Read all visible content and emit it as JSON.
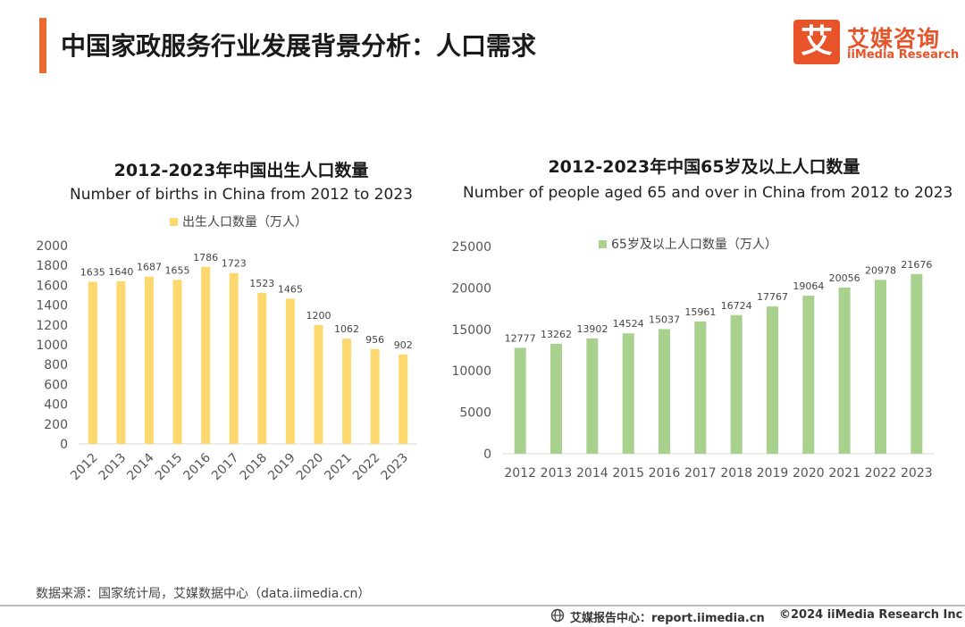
{
  "header": {
    "title": "中国家政服务行业发展背景分析：人口需求"
  },
  "logo": {
    "box_char": "艾",
    "cn": "艾媒咨询",
    "en": "iiMedia Research",
    "brand_color": "#e8542a"
  },
  "left_chart": {
    "title": "2012-2023年中国出生人口数量",
    "subtitle": "Number of births in China from 2012 to 2023",
    "legend": "出生人口数量（万人）"
  },
  "right_chart": {
    "title": "2012-2023年中国65岁及以上人口数量",
    "subtitle": "Number of people aged 65 and over in China from 2012 to 2023",
    "legend": "65岁及以上人口数量（万人）"
  },
  "chart_data": [
    {
      "type": "bar",
      "title": "2012-2023年中国出生人口数量",
      "subtitle": "Number of births in China from 2012 to 2023",
      "categories": [
        "2012",
        "2013",
        "2014",
        "2015",
        "2016",
        "2017",
        "2018",
        "2019",
        "2020",
        "2021",
        "2022",
        "2023"
      ],
      "series": [
        {
          "name": "出生人口数量（万人）",
          "values": [
            1635,
            1640,
            1687,
            1655,
            1786,
            1723,
            1523,
            1465,
            1200,
            1062,
            956,
            902
          ]
        }
      ],
      "ylim": [
        0,
        2000
      ],
      "yticks": [
        0,
        200,
        400,
        600,
        800,
        1000,
        1200,
        1400,
        1600,
        1800,
        2000
      ],
      "color": "#fdd86e",
      "grid": false,
      "xtick_rotation": -45
    },
    {
      "type": "bar",
      "title": "2012-2023年中国65岁及以上人口数量",
      "subtitle": "Number of people aged 65 and over in China from 2012 to 2023",
      "categories": [
        "2012",
        "2013",
        "2014",
        "2015",
        "2016",
        "2017",
        "2018",
        "2019",
        "2020",
        "2021",
        "2022",
        "2023"
      ],
      "series": [
        {
          "name": "65岁及以上人口数量（万人）",
          "values": [
            12777,
            13262,
            13902,
            14524,
            15037,
            15961,
            16724,
            17767,
            19064,
            20056,
            20978,
            21676
          ]
        }
      ],
      "ylim": [
        0,
        25000
      ],
      "yticks": [
        0,
        5000,
        10000,
        15000,
        20000,
        25000
      ],
      "color": "#a9d18e",
      "grid": false,
      "xtick_rotation": 0
    }
  ],
  "source": "数据来源：国家统计局，艾媒数据中心（data.iimedia.cn）",
  "footer": {
    "report": "艾媒报告中心：report.iimedia.cn",
    "copyright": "©2024  iiMedia Research  Inc"
  }
}
